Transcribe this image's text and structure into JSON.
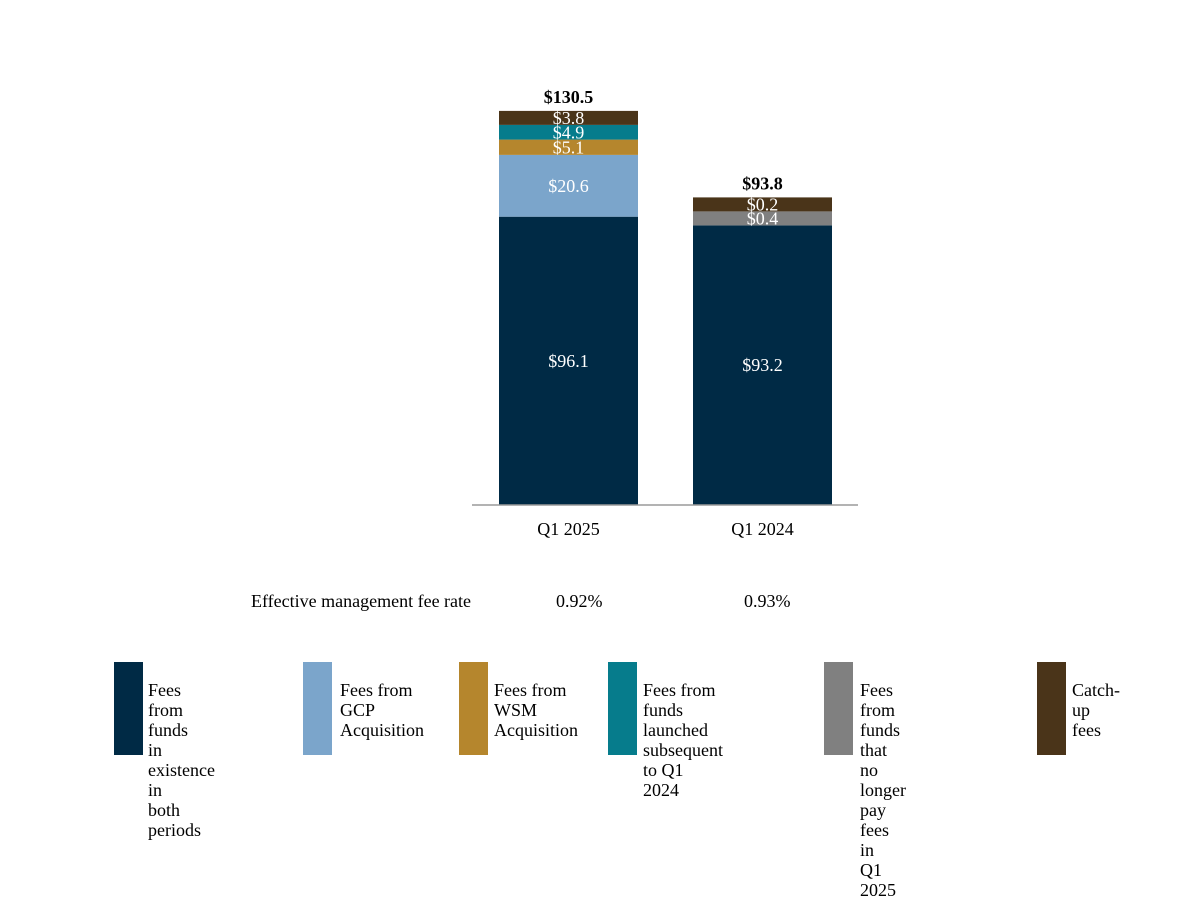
{
  "chart_data": {
    "type": "bar",
    "stacked": true,
    "categories": [
      "Q1 2025",
      "Q1 2024"
    ],
    "series": [
      {
        "name": "Fees from funds in existence in both periods",
        "color": "#002a45",
        "values": [
          96.1,
          93.2
        ],
        "labels": [
          "$96.1",
          "$93.2"
        ]
      },
      {
        "name": "Fees from GCP Acquisition",
        "color": "#7ba5cb",
        "values": [
          20.6,
          0
        ],
        "labels": [
          "$20.6",
          ""
        ]
      },
      {
        "name": "Fees from WSM Acquisition",
        "color": "#b5862d",
        "values": [
          5.1,
          0
        ],
        "labels": [
          "$5.1",
          ""
        ]
      },
      {
        "name": "Fees from funds launched subsequent to Q1 2024",
        "color": "#067c8c",
        "values": [
          4.9,
          0
        ],
        "labels": [
          "$4.9",
          ""
        ]
      },
      {
        "name": "Fees from funds that no longer pay fees in Q1 2025",
        "color": "#808080",
        "values": [
          0,
          0.4
        ],
        "labels": [
          "",
          "$0.4"
        ]
      },
      {
        "name": "Catch-up fees",
        "color": "#4a3419",
        "values": [
          3.8,
          0.2
        ],
        "labels": [
          "$3.8",
          "$0.2"
        ]
      }
    ],
    "totals": [
      "$130.5",
      "$93.8"
    ],
    "ylim": [
      0,
      140
    ],
    "grid": false,
    "legend_position": "bottom"
  },
  "fee_rate": {
    "label": "Effective management fee rate",
    "values": [
      "0.92%",
      "0.93%"
    ]
  },
  "legend": {
    "items": [
      {
        "label": "Fees from funds\nin existence in\nboth periods",
        "color": "#002a45"
      },
      {
        "label": "Fees from\nGCP\nAcquisition",
        "color": "#7ba5cb"
      },
      {
        "label": "Fees from\nWSM\nAcquisition",
        "color": "#b5862d"
      },
      {
        "label": "Fees from funds\nlaunched subsequent\nto Q1 2024",
        "color": "#067c8c"
      },
      {
        "label": "Fees from funds that\nno longer pay fees in\nQ1 2025",
        "color": "#808080"
      },
      {
        "label": "Catch-up fees",
        "color": "#4a3419"
      }
    ]
  }
}
